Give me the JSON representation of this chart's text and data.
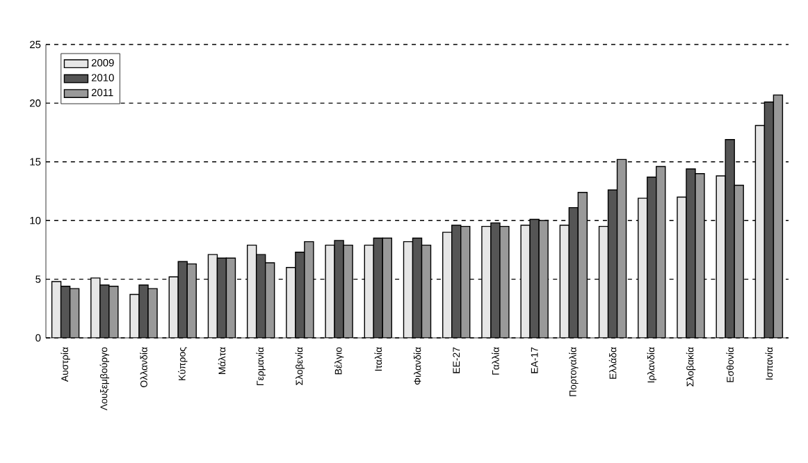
{
  "chart_data": {
    "type": "bar",
    "categories": [
      "Αυστρία",
      "Λουξεμβούργο",
      "Ολλανδία",
      "Κύπρος",
      "Μάλτα",
      "Γερμανία",
      "Σλοβενία",
      "Βέλγιο",
      "Ιταλία",
      "Φιλανδία",
      "ΕΕ-27",
      "Γαλλία",
      "ΕΑ-17",
      "Πορτογαλία",
      "Ελλάδα",
      "Ιρλανδία",
      "Σλοβακία",
      "Εσθονία",
      "Ισπανία"
    ],
    "series": [
      {
        "name": "2009",
        "color": "#e6e6e6",
        "values": [
          4.8,
          5.1,
          3.7,
          5.2,
          7.1,
          7.9,
          6.0,
          7.9,
          7.9,
          8.2,
          9.0,
          9.5,
          9.6,
          9.6,
          9.5,
          11.9,
          12.0,
          13.8,
          18.1
        ]
      },
      {
        "name": "2010",
        "color": "#555555",
        "values": [
          4.4,
          4.5,
          4.5,
          6.5,
          6.8,
          7.1,
          7.3,
          8.3,
          8.5,
          8.5,
          9.6,
          9.8,
          10.1,
          11.1,
          12.6,
          13.7,
          14.4,
          16.9,
          20.1
        ]
      },
      {
        "name": "2011",
        "color": "#999999",
        "values": [
          4.2,
          4.4,
          4.2,
          6.3,
          6.8,
          6.4,
          8.2,
          7.9,
          8.5,
          7.9,
          9.5,
          9.5,
          10.0,
          12.4,
          15.2,
          14.6,
          14.0,
          13.0,
          20.7
        ]
      }
    ],
    "ylim": [
      0,
      25
    ],
    "yticks": [
      0,
      5,
      10,
      15,
      20,
      25
    ],
    "grid": "y",
    "legend": "top left"
  }
}
